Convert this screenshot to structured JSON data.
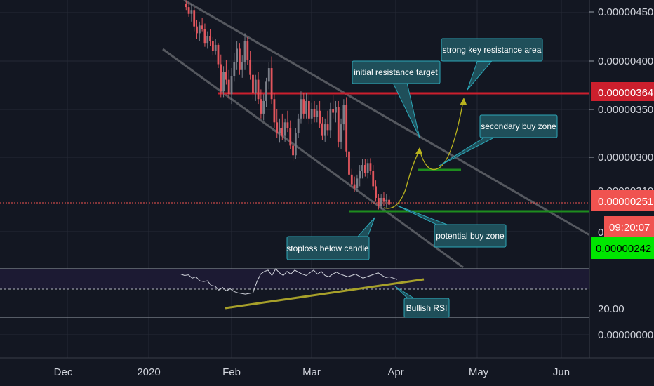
{
  "chart_data": [
    {
      "type": "candlestick",
      "x_axis_labels": [
        "Dec",
        "2020",
        "Feb",
        "Mar",
        "Apr",
        "May",
        "Jun"
      ],
      "y_axis_labels": [
        "0.00000450",
        "0.00000400",
        "0.00000350",
        "0.00000300"
      ],
      "ylim": [
        2.28e-06,
        4.62e-06
      ],
      "grid": true,
      "price_tags": [
        {
          "label": "0.00000364",
          "value": 3.64e-06,
          "color": "#cc1f2d"
        },
        {
          "label": "0.00000251",
          "value": 2.51e-06,
          "color": "#f05350"
        },
        {
          "label": "09:20:07",
          "value": 2.44e-06,
          "color": "#f05350"
        },
        {
          "label": "0.00000242",
          "value": 2.42e-06,
          "color": "#00e600"
        }
      ],
      "hidden_tag_fragments": [
        "0.00000310",
        "0"
      ],
      "ohlc": [
        {
          "d": "2020-01-15",
          "o": 4.58,
          "h": 4.62,
          "l": 4.52,
          "c": 4.55
        },
        {
          "d": "2020-01-16",
          "o": 4.55,
          "h": 4.6,
          "l": 4.45,
          "c": 4.48
        },
        {
          "d": "2020-01-17",
          "o": 4.48,
          "h": 4.58,
          "l": 4.4,
          "c": 4.52
        },
        {
          "d": "2020-01-18",
          "o": 4.52,
          "h": 4.55,
          "l": 4.3,
          "c": 4.35
        },
        {
          "d": "2020-01-19",
          "o": 4.35,
          "h": 4.42,
          "l": 4.22,
          "c": 4.28
        },
        {
          "d": "2020-01-20",
          "o": 4.28,
          "h": 4.4,
          "l": 4.2,
          "c": 4.36
        },
        {
          "d": "2020-01-21",
          "o": 4.36,
          "h": 4.44,
          "l": 4.3,
          "c": 4.32
        },
        {
          "d": "2020-01-22",
          "o": 4.32,
          "h": 4.38,
          "l": 4.14,
          "c": 4.18
        },
        {
          "d": "2020-01-23",
          "o": 4.18,
          "h": 4.3,
          "l": 4.12,
          "c": 4.25
        },
        {
          "d": "2020-01-24",
          "o": 4.25,
          "h": 4.32,
          "l": 4.15,
          "c": 4.2
        },
        {
          "d": "2020-01-25",
          "o": 4.2,
          "h": 4.24,
          "l": 4.05,
          "c": 4.1
        },
        {
          "d": "2020-01-26",
          "o": 4.1,
          "h": 4.22,
          "l": 4.06,
          "c": 4.16
        },
        {
          "d": "2020-01-27",
          "o": 4.16,
          "h": 4.18,
          "l": 3.92,
          "c": 3.96
        },
        {
          "d": "2020-01-28",
          "o": 3.96,
          "h": 4.06,
          "l": 3.62,
          "c": 3.68
        },
        {
          "d": "2020-01-29",
          "o": 3.68,
          "h": 3.94,
          "l": 3.62,
          "c": 3.88
        },
        {
          "d": "2020-01-30",
          "o": 3.88,
          "h": 4.0,
          "l": 3.75,
          "c": 3.8
        },
        {
          "d": "2020-01-31",
          "o": 3.8,
          "h": 3.9,
          "l": 3.6,
          "c": 3.65
        },
        {
          "d": "2020-02-01",
          "o": 3.65,
          "h": 3.92,
          "l": 3.55,
          "c": 3.84
        },
        {
          "d": "2020-02-02",
          "o": 3.84,
          "h": 4.08,
          "l": 3.78,
          "c": 3.98
        },
        {
          "d": "2020-02-03",
          "o": 3.98,
          "h": 4.2,
          "l": 3.9,
          "c": 4.12
        },
        {
          "d": "2020-02-04",
          "o": 4.12,
          "h": 4.18,
          "l": 3.85,
          "c": 3.9
        },
        {
          "d": "2020-02-05",
          "o": 3.9,
          "h": 4.05,
          "l": 3.82,
          "c": 3.98
        },
        {
          "d": "2020-02-06",
          "o": 3.98,
          "h": 4.28,
          "l": 3.9,
          "c": 4.2
        },
        {
          "d": "2020-02-07",
          "o": 4.2,
          "h": 4.24,
          "l": 3.95,
          "c": 4.0
        },
        {
          "d": "2020-02-08",
          "o": 4.0,
          "h": 4.1,
          "l": 3.8,
          "c": 3.85
        },
        {
          "d": "2020-02-09",
          "o": 3.85,
          "h": 3.95,
          "l": 3.6,
          "c": 3.66
        },
        {
          "d": "2020-02-10",
          "o": 3.66,
          "h": 3.85,
          "l": 3.58,
          "c": 3.8
        },
        {
          "d": "2020-02-11",
          "o": 3.8,
          "h": 3.88,
          "l": 3.55,
          "c": 3.6
        },
        {
          "d": "2020-02-12",
          "o": 3.6,
          "h": 3.7,
          "l": 3.4,
          "c": 3.45
        },
        {
          "d": "2020-02-13",
          "o": 3.45,
          "h": 3.65,
          "l": 3.38,
          "c": 3.58
        },
        {
          "d": "2020-02-14",
          "o": 3.58,
          "h": 3.82,
          "l": 3.52,
          "c": 3.78
        },
        {
          "d": "2020-02-15",
          "o": 3.78,
          "h": 3.98,
          "l": 3.7,
          "c": 3.92
        },
        {
          "d": "2020-02-16",
          "o": 3.92,
          "h": 4.04,
          "l": 3.55,
          "c": 3.6
        },
        {
          "d": "2020-02-17",
          "o": 3.6,
          "h": 3.66,
          "l": 3.3,
          "c": 3.36
        },
        {
          "d": "2020-02-18",
          "o": 3.36,
          "h": 3.5,
          "l": 3.2,
          "c": 3.25
        },
        {
          "d": "2020-02-19",
          "o": 3.25,
          "h": 3.4,
          "l": 3.15,
          "c": 3.3
        },
        {
          "d": "2020-02-20",
          "o": 3.3,
          "h": 3.45,
          "l": 3.18,
          "c": 3.22
        },
        {
          "d": "2020-02-21",
          "o": 3.22,
          "h": 3.4,
          "l": 3.16,
          "c": 3.36
        },
        {
          "d": "2020-02-22",
          "o": 3.36,
          "h": 3.48,
          "l": 3.26,
          "c": 3.3
        },
        {
          "d": "2020-02-23",
          "o": 3.3,
          "h": 3.38,
          "l": 3.08,
          "c": 3.12
        },
        {
          "d": "2020-02-24",
          "o": 3.12,
          "h": 3.2,
          "l": 2.96,
          "c": 3.02
        },
        {
          "d": "2020-02-25",
          "o": 3.02,
          "h": 3.3,
          "l": 2.98,
          "c": 3.25
        },
        {
          "d": "2020-02-26",
          "o": 3.25,
          "h": 3.45,
          "l": 3.2,
          "c": 3.4
        },
        {
          "d": "2020-02-27",
          "o": 3.4,
          "h": 3.68,
          "l": 3.35,
          "c": 3.6
        },
        {
          "d": "2020-02-28",
          "o": 3.6,
          "h": 3.66,
          "l": 3.4,
          "c": 3.45
        },
        {
          "d": "2020-02-29",
          "o": 3.45,
          "h": 3.66,
          "l": 3.4,
          "c": 3.58
        },
        {
          "d": "2020-03-01",
          "o": 3.58,
          "h": 3.64,
          "l": 3.34,
          "c": 3.4
        },
        {
          "d": "2020-03-02",
          "o": 3.4,
          "h": 3.56,
          "l": 3.34,
          "c": 3.5
        },
        {
          "d": "2020-03-03",
          "o": 3.5,
          "h": 3.58,
          "l": 3.36,
          "c": 3.42
        },
        {
          "d": "2020-03-04",
          "o": 3.42,
          "h": 3.54,
          "l": 3.36,
          "c": 3.48
        },
        {
          "d": "2020-03-05",
          "o": 3.48,
          "h": 3.58,
          "l": 3.3,
          "c": 3.35
        },
        {
          "d": "2020-03-06",
          "o": 3.35,
          "h": 3.42,
          "l": 3.18,
          "c": 3.22
        },
        {
          "d": "2020-03-07",
          "o": 3.22,
          "h": 3.4,
          "l": 3.16,
          "c": 3.34
        },
        {
          "d": "2020-03-08",
          "o": 3.34,
          "h": 3.48,
          "l": 3.22,
          "c": 3.28
        },
        {
          "d": "2020-03-09",
          "o": 3.28,
          "h": 3.56,
          "l": 3.2,
          "c": 3.5
        },
        {
          "d": "2020-03-10",
          "o": 3.5,
          "h": 3.64,
          "l": 3.4,
          "c": 3.46
        },
        {
          "d": "2020-03-11",
          "o": 3.46,
          "h": 3.58,
          "l": 3.36,
          "c": 3.52
        },
        {
          "d": "2020-03-12",
          "o": 3.52,
          "h": 3.58,
          "l": 3.1,
          "c": 3.16
        },
        {
          "d": "2020-03-13",
          "o": 3.16,
          "h": 3.4,
          "l": 3.08,
          "c": 3.34
        },
        {
          "d": "2020-03-14",
          "o": 3.34,
          "h": 3.6,
          "l": 3.28,
          "c": 3.54
        },
        {
          "d": "2020-03-15",
          "o": 3.54,
          "h": 3.62,
          "l": 3.0,
          "c": 3.06
        },
        {
          "d": "2020-03-16",
          "o": 3.06,
          "h": 3.1,
          "l": 2.76,
          "c": 2.82
        },
        {
          "d": "2020-03-17",
          "o": 2.82,
          "h": 2.88,
          "l": 2.68,
          "c": 2.72
        },
        {
          "d": "2020-03-18",
          "o": 2.72,
          "h": 2.8,
          "l": 2.64,
          "c": 2.68
        },
        {
          "d": "2020-03-19",
          "o": 2.68,
          "h": 2.82,
          "l": 2.64,
          "c": 2.78
        },
        {
          "d": "2020-03-20",
          "o": 2.78,
          "h": 2.92,
          "l": 2.7,
          "c": 2.86
        },
        {
          "d": "2020-03-21",
          "o": 2.86,
          "h": 2.98,
          "l": 2.78,
          "c": 2.92
        },
        {
          "d": "2020-03-22",
          "o": 2.92,
          "h": 2.98,
          "l": 2.8,
          "c": 2.84
        },
        {
          "d": "2020-03-23",
          "o": 2.84,
          "h": 2.98,
          "l": 2.78,
          "c": 2.94
        },
        {
          "d": "2020-03-24",
          "o": 2.94,
          "h": 2.99,
          "l": 2.82,
          "c": 2.86
        },
        {
          "d": "2020-03-25",
          "o": 2.86,
          "h": 2.92,
          "l": 2.66,
          "c": 2.7
        },
        {
          "d": "2020-03-26",
          "o": 2.7,
          "h": 2.76,
          "l": 2.54,
          "c": 2.58
        },
        {
          "d": "2020-03-27",
          "o": 2.58,
          "h": 2.62,
          "l": 2.46,
          "c": 2.5
        },
        {
          "d": "2020-03-28",
          "o": 2.5,
          "h": 2.62,
          "l": 2.46,
          "c": 2.58
        },
        {
          "d": "2020-03-29",
          "o": 2.58,
          "h": 2.64,
          "l": 2.5,
          "c": 2.54
        },
        {
          "d": "2020-03-30",
          "o": 2.54,
          "h": 2.62,
          "l": 2.48,
          "c": 2.56
        },
        {
          "d": "2020-03-31",
          "o": 2.56,
          "h": 2.6,
          "l": 2.48,
          "c": 2.51
        }
      ],
      "horizontal_levels": [
        {
          "name": "resistance",
          "value": 3.64e-06,
          "color": "#cc1f2d"
        },
        {
          "name": "current-price",
          "value": 2.51e-06,
          "color": "#f05350"
        },
        {
          "name": "potential-buy-zone",
          "value": 2.42e-06,
          "color": "#1e8c1e"
        },
        {
          "name": "secondary-buy-zone",
          "value": 2.82e-06,
          "color": "#1e8c1e"
        }
      ],
      "annotations": [
        "strong key resistance area",
        "initial resistance target",
        "secondary buy zone",
        "potential buy zone",
        "stoploss below candle",
        "Bullish RSI"
      ]
    },
    {
      "type": "line",
      "y_axis_labels": [
        "20.00"
      ],
      "rsi_values": [
        72,
        70,
        71,
        66,
        68,
        62,
        61,
        62,
        55,
        54,
        48,
        52,
        47,
        50,
        46,
        44,
        43,
        42,
        43,
        44,
        60,
        72,
        76,
        78,
        70,
        80,
        74,
        70,
        76,
        72,
        78,
        75,
        72,
        70,
        74,
        78,
        72,
        76,
        70,
        68,
        72,
        75,
        72,
        70,
        68,
        70,
        72,
        69,
        66,
        68,
        70,
        72,
        74,
        70,
        67,
        68,
        66,
        64
      ],
      "dates_start": "2020-01-13",
      "dates_end": "2020-04-03",
      "ylim": [
        10,
        90
      ]
    },
    {
      "type": "bar",
      "y_axis_labels": [
        "0.00000000"
      ]
    }
  ],
  "colors": {
    "background": "#131722",
    "up": "#7a7e88",
    "down": "#e2555d",
    "channel": "#55585f",
    "annotation_fill": "#1f4f5a",
    "annotation_border": "#2ca7b8",
    "arrow_yellow": "#b8b21e",
    "rsi_trend": "#a7a02a"
  }
}
